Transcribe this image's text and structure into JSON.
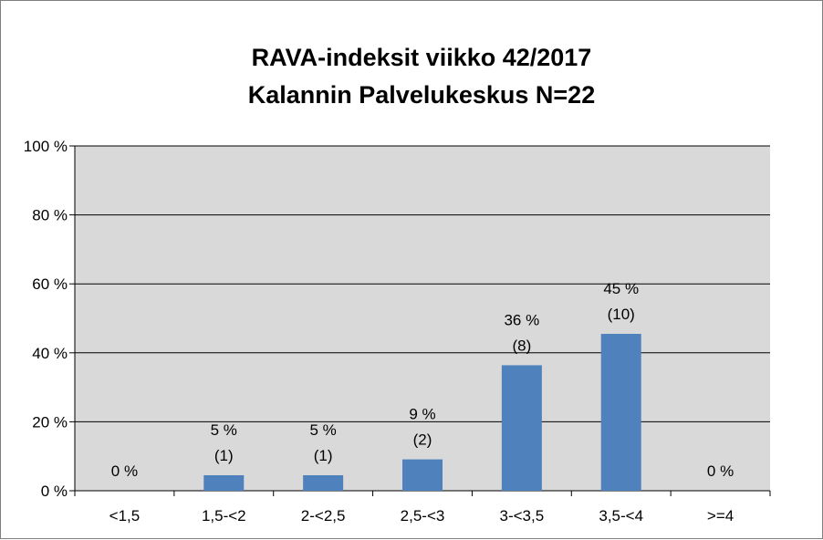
{
  "chart_data": {
    "type": "bar",
    "title": [
      "RAVA-indeksit viikko 42/2017",
      "Kalannin Palvelukeskus   N=22"
    ],
    "xlabel": "",
    "ylabel": "",
    "categories": [
      "<1,5",
      "1,5-<2",
      "2-<2,5",
      "2,5-<3",
      "3-<3,5",
      "3,5-<4",
      ">=4"
    ],
    "values": [
      0,
      4.5,
      4.5,
      9.1,
      36.4,
      45.5,
      0
    ],
    "data_labels": [
      [
        "0 %"
      ],
      [
        "5 %",
        "(1)"
      ],
      [
        "5 %",
        "(1)"
      ],
      [
        "9 %",
        "(2)"
      ],
      [
        "36 %",
        "(8)"
      ],
      [
        "45 %",
        "(10)"
      ],
      [
        "0 %"
      ]
    ],
    "yticks": [
      "0 %",
      "20 %",
      "40 %",
      "60 %",
      "80 %",
      "100 %"
    ],
    "ylim": [
      0,
      100
    ],
    "grid": true,
    "legend": "none",
    "colors": {
      "bar": "#4f81bd",
      "plot_background": "#d9d9d9",
      "gridline": "#000000",
      "frame_border": "#7f7f7f"
    }
  }
}
